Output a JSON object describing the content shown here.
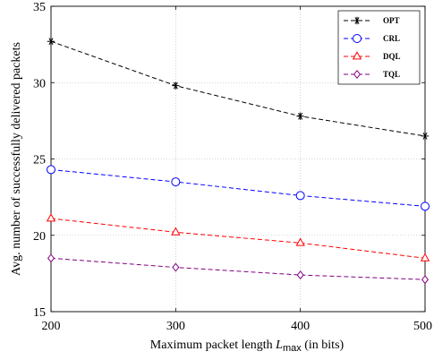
{
  "chart_data": {
    "type": "line",
    "xlabel_prefix": "Maximum packet length",
    "xlabel_var": "L",
    "xlabel_sub": "max",
    "xlabel_suffix": "(in bits)",
    "ylabel": "Avg. number of successfully delivered packets",
    "x": [
      200,
      300,
      400,
      500
    ],
    "xlim": [
      200,
      500
    ],
    "ylim": [
      15,
      35
    ],
    "xticks": [
      "200",
      "300",
      "400",
      "500"
    ],
    "yticks": [
      "15",
      "20",
      "25",
      "30",
      "35"
    ],
    "grid": true,
    "legend_position": "top-right",
    "series": [
      {
        "name": "OPT",
        "values": [
          32.7,
          29.8,
          27.8,
          26.5
        ],
        "color": "#000000",
        "marker": "asterisk"
      },
      {
        "name": "CRL",
        "values": [
          24.3,
          23.5,
          22.6,
          21.9
        ],
        "color": "#0000ff",
        "marker": "circle"
      },
      {
        "name": "DQL",
        "values": [
          21.1,
          20.2,
          19.5,
          18.5
        ],
        "color": "#ff0000",
        "marker": "triangle"
      },
      {
        "name": "TQL",
        "values": [
          18.5,
          17.9,
          17.4,
          17.1
        ],
        "color": "#800080",
        "marker": "diamond"
      }
    ]
  }
}
